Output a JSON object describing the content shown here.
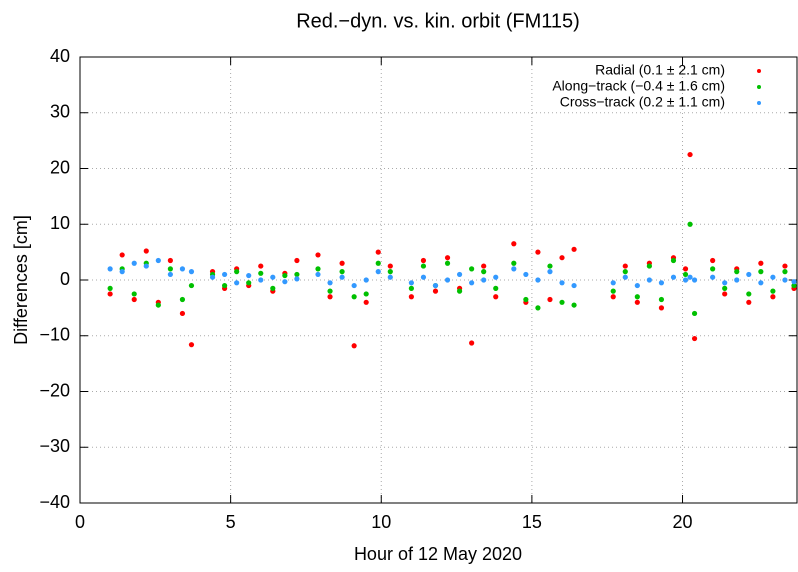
{
  "chart_data": {
    "type": "scatter",
    "title": "Red.−dyn. vs. kin. orbit (FM115)",
    "x_label": "Hour of 12 May 2020",
    "y_label": "Differences [cm]",
    "xlim": [
      0,
      23.8
    ],
    "ylim": [
      -40,
      40
    ],
    "xticks": [
      0,
      5,
      10,
      15,
      20
    ],
    "yticks": [
      {
        "value": -40,
        "label": "−40"
      },
      {
        "value": -30,
        "label": "−30"
      },
      {
        "value": -20,
        "label": "−20"
      },
      {
        "value": -10,
        "label": "−10"
      },
      0,
      10,
      20,
      30,
      40
    ],
    "grid": true,
    "legend": "top-right",
    "x": [
      1.0,
      1.4,
      1.8,
      2.2,
      2.6,
      3.0,
      3.4,
      3.7,
      4.4,
      4.8,
      5.2,
      5.6,
      6.0,
      6.4,
      6.8,
      7.2,
      7.9,
      8.3,
      8.7,
      9.1,
      9.5,
      9.9,
      10.3,
      11.0,
      11.4,
      11.8,
      12.2,
      12.6,
      13.0,
      13.4,
      13.8,
      14.4,
      14.8,
      15.2,
      15.6,
      16.0,
      16.4,
      17.7,
      18.1,
      18.5,
      18.9,
      19.3,
      19.7,
      20.1,
      20.25,
      20.4,
      21.0,
      21.4,
      21.8,
      22.2,
      22.6,
      23.0,
      23.4,
      23.7
    ],
    "series": [
      {
        "name": "Radial (0.1 ± 2.1 cm)",
        "color": "#ff0000",
        "values": [
          -2.5,
          4.5,
          -3.5,
          5.2,
          -4,
          3.5,
          -6,
          -11.6,
          1.5,
          -1.5,
          2,
          -1,
          2.5,
          -2,
          1.2,
          3.5,
          4.5,
          -3,
          3,
          -11.8,
          -4,
          5,
          2.5,
          -3,
          3.5,
          -2,
          4,
          -1.5,
          -11.3,
          2.5,
          -3,
          6.5,
          -4,
          5,
          -3.5,
          4,
          5.5,
          -3,
          2.5,
          -4,
          3,
          -5,
          4,
          2,
          22.5,
          -10.5,
          3.5,
          -2.5,
          2,
          -4,
          3,
          -3,
          2.5,
          -1.5
        ]
      },
      {
        "name": "Along−track (−0.4 ± 1.6 cm)",
        "color": "#00c000",
        "values": [
          -1.5,
          2,
          -2.5,
          3,
          -4.5,
          2,
          -3.5,
          -1,
          1,
          -1,
          1.5,
          -0.5,
          1.2,
          -1.5,
          0.8,
          1,
          2,
          -2,
          1.5,
          -3,
          -2.5,
          3,
          1.5,
          -1.5,
          2.5,
          -1,
          3,
          -2,
          2,
          1.5,
          -1.5,
          3,
          -3.5,
          -5,
          2.5,
          -4,
          -4.5,
          -2,
          1.5,
          -3,
          2.5,
          -3.5,
          3.5,
          1,
          10,
          -6,
          2,
          -1.5,
          1.5,
          -2.5,
          1.5,
          -2,
          1.5,
          -1
        ]
      },
      {
        "name": "Cross−track (0.2 ± 1.1 cm)",
        "color": "#3399ff",
        "values": [
          2,
          1.5,
          3,
          2.5,
          3.5,
          1,
          2,
          1.5,
          0.5,
          1,
          -0.5,
          0.8,
          0,
          0.5,
          -0.3,
          0.2,
          1,
          -0.5,
          0.5,
          -1,
          0,
          1.5,
          0.5,
          -0.5,
          0.5,
          -1,
          0,
          1,
          -0.5,
          0,
          0.5,
          2,
          1,
          0,
          1.5,
          -0.5,
          -1,
          -0.5,
          0.5,
          -1,
          0,
          -0.5,
          0.5,
          0,
          0.5,
          0,
          0.5,
          -0.5,
          0,
          1,
          -0.5,
          0.5,
          0,
          -0.3
        ]
      }
    ]
  }
}
